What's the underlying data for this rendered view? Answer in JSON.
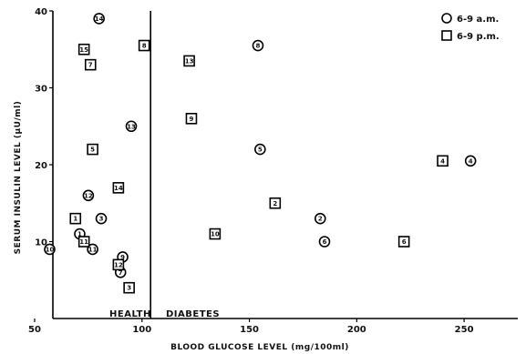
{
  "chart_data": {
    "type": "scatter",
    "title": "",
    "xlabel": "BLOOD GLUCOSE LEVEL (mg/100ml)",
    "ylabel": "SERUM INSULIN LEVEL (μU/ml)",
    "xlim": [
      50,
      275
    ],
    "ylim": [
      0,
      40
    ],
    "xticks": [
      "50",
      "100",
      "150",
      "200",
      "250"
    ],
    "yticks": [
      "10",
      "20",
      "30",
      "40"
    ],
    "grid": false,
    "legend_position": "top-right",
    "divider_x": 104,
    "regions": [
      {
        "label": "HEALTH"
      },
      {
        "label": "DIABETES"
      }
    ],
    "series": [
      {
        "name": "6-9 a.m.",
        "marker": "circle",
        "points": [
          {
            "label": "1",
            "x": 71,
            "y": 11
          },
          {
            "label": "2",
            "x": 183,
            "y": 13
          },
          {
            "label": "3",
            "x": 81,
            "y": 13
          },
          {
            "label": "4",
            "x": 253,
            "y": 20.5
          },
          {
            "label": "5",
            "x": 155,
            "y": 22
          },
          {
            "label": "6",
            "x": 185,
            "y": 10
          },
          {
            "label": "7",
            "x": 90,
            "y": 6
          },
          {
            "label": "8",
            "x": 154,
            "y": 35.5
          },
          {
            "label": "9",
            "x": 91,
            "y": 8
          },
          {
            "label": "10",
            "x": 57,
            "y": 9
          },
          {
            "label": "11",
            "x": 77,
            "y": 9
          },
          {
            "label": "12",
            "x": 75,
            "y": 16
          },
          {
            "label": "13",
            "x": 95,
            "y": 25
          },
          {
            "label": "14",
            "x": 80,
            "y": 39
          }
        ]
      },
      {
        "name": "6-9 p.m.",
        "marker": "square",
        "points": [
          {
            "label": "1",
            "x": 69,
            "y": 13
          },
          {
            "label": "2",
            "x": 162,
            "y": 15
          },
          {
            "label": "3",
            "x": 94,
            "y": 4
          },
          {
            "label": "4",
            "x": 240,
            "y": 20.5
          },
          {
            "label": "5",
            "x": 77,
            "y": 22
          },
          {
            "label": "6",
            "x": 222,
            "y": 10
          },
          {
            "label": "7",
            "x": 76,
            "y": 33
          },
          {
            "label": "8",
            "x": 101,
            "y": 35.5
          },
          {
            "label": "9",
            "x": 123,
            "y": 26
          },
          {
            "label": "10",
            "x": 134,
            "y": 11
          },
          {
            "label": "11",
            "x": 73,
            "y": 10
          },
          {
            "label": "12",
            "x": 89,
            "y": 7
          },
          {
            "label": "13",
            "x": 122,
            "y": 33.5
          },
          {
            "label": "14",
            "x": 89,
            "y": 17
          },
          {
            "label": "15",
            "x": 73,
            "y": 35
          }
        ]
      }
    ]
  }
}
